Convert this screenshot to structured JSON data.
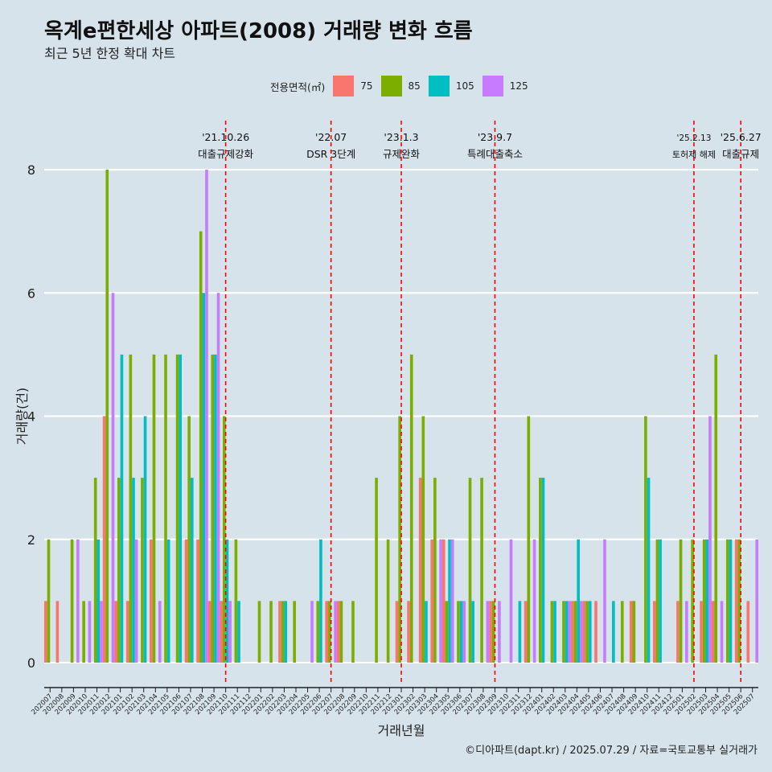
{
  "title": "옥계e편한세상 아파트(2008) 거래량 변화 흐름",
  "subtitle": "최근 5년 한정 확대 차트",
  "caption": "©디아파트(dapt.kr) / 2025.07.29 / 자료=국토교통부 실거래가",
  "legend": {
    "title": "전용면적(㎡)",
    "items": [
      {
        "label": "75",
        "color": "#F8766D"
      },
      {
        "label": "85",
        "color": "#7CAE00"
      },
      {
        "label": "105",
        "color": "#00BFC4"
      },
      {
        "label": "125",
        "color": "#C77CFF"
      }
    ]
  },
  "chart_data": {
    "type": "bar",
    "xlabel": "거래년월",
    "ylabel": "거래량(건)",
    "ylim": [
      0,
      8
    ],
    "yticks": [
      0,
      2,
      4,
      6,
      8
    ],
    "grid": true,
    "legend_position": "top",
    "categories": [
      "202007",
      "202008",
      "202009",
      "202010",
      "202011",
      "202012",
      "202101",
      "202102",
      "202103",
      "202104",
      "202105",
      "202106",
      "202107",
      "202108",
      "202109",
      "202110",
      "202111",
      "202112",
      "202201",
      "202202",
      "202203",
      "202204",
      "202205",
      "202206",
      "202207",
      "202208",
      "202209",
      "202210",
      "202211",
      "202212",
      "202301",
      "202302",
      "202303",
      "202304",
      "202305",
      "202306",
      "202307",
      "202308",
      "202309",
      "202310",
      "202311",
      "202312",
      "202401",
      "202402",
      "202403",
      "202404",
      "202405",
      "202406",
      "202407",
      "202408",
      "202409",
      "202410",
      "202411",
      "202412",
      "202501",
      "202502",
      "202503",
      "202504",
      "202505",
      "202506",
      "202507"
    ],
    "series": [
      {
        "name": "75",
        "color": "#F8766D",
        "values": [
          1,
          1,
          0,
          0,
          0,
          4,
          1,
          1,
          0,
          2,
          0,
          0,
          2,
          2,
          1,
          1,
          0,
          0,
          0,
          0,
          1,
          0,
          0,
          0,
          1,
          1,
          0,
          0,
          0,
          0,
          1,
          1,
          3,
          2,
          2,
          0,
          0,
          0,
          1,
          0,
          0,
          1,
          0,
          0,
          0,
          1,
          1,
          1,
          0,
          0,
          1,
          0,
          1,
          0,
          1,
          0,
          1,
          1,
          0,
          2,
          1
        ]
      },
      {
        "name": "85",
        "color": "#7CAE00",
        "values": [
          2,
          0,
          2,
          1,
          3,
          8,
          3,
          5,
          3,
          5,
          5,
          5,
          4,
          7,
          5,
          4,
          2,
          0,
          1,
          1,
          1,
          1,
          0,
          1,
          1,
          1,
          1,
          0,
          3,
          2,
          4,
          5,
          4,
          3,
          1,
          1,
          3,
          3,
          1,
          0,
          0,
          4,
          3,
          1,
          1,
          1,
          1,
          0,
          0,
          1,
          1,
          4,
          2,
          0,
          2,
          2,
          2,
          5,
          2,
          2,
          0
        ]
      },
      {
        "name": "105",
        "color": "#00BFC4",
        "values": [
          0,
          0,
          0,
          0,
          2,
          0,
          5,
          3,
          4,
          0,
          2,
          5,
          3,
          6,
          5,
          2,
          1,
          0,
          0,
          0,
          1,
          0,
          0,
          2,
          0,
          0,
          0,
          0,
          0,
          0,
          0,
          0,
          1,
          0,
          2,
          1,
          1,
          0,
          0,
          0,
          1,
          0,
          3,
          1,
          1,
          2,
          1,
          0,
          1,
          0,
          0,
          3,
          2,
          0,
          0,
          0,
          2,
          0,
          2,
          0,
          0
        ]
      },
      {
        "name": "125",
        "color": "#C77CFF",
        "values": [
          0,
          0,
          2,
          1,
          1,
          6,
          0,
          2,
          0,
          1,
          0,
          0,
          0,
          8,
          6,
          1,
          0,
          0,
          0,
          0,
          0,
          0,
          1,
          0,
          1,
          0,
          0,
          0,
          0,
          0,
          0,
          0,
          0,
          2,
          2,
          1,
          0,
          1,
          1,
          2,
          0,
          2,
          0,
          0,
          1,
          1,
          0,
          2,
          0,
          0,
          0,
          0,
          0,
          0,
          1,
          0,
          4,
          1,
          0,
          0,
          2
        ]
      }
    ],
    "annotations": [
      {
        "x": "202110",
        "date": "'21.10.26",
        "label": "대출규제강화"
      },
      {
        "x": "202207",
        "date": "'22.07",
        "label": "DSR 3단계"
      },
      {
        "x": "202301",
        "date": "'23.1.3",
        "label": "규제완화"
      },
      {
        "x": "202309",
        "date": "'23.9.7",
        "label": "특례대출축소"
      },
      {
        "x": "202502",
        "date": "'25.2.13",
        "label": "토허제 해제"
      },
      {
        "x": "202506",
        "date": "'25.6.27",
        "label": "대출규제"
      }
    ]
  }
}
